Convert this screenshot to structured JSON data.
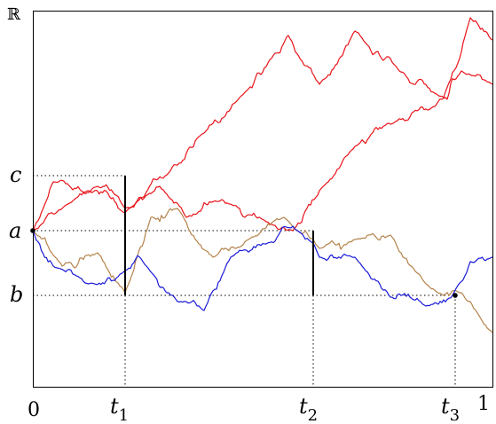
{
  "axis_symbol": "ℝ",
  "y_labels": {
    "c": "c",
    "a": "a",
    "b": "b"
  },
  "x_labels": {
    "origin": "0",
    "end": "1",
    "t1": {
      "base": "t",
      "sub": "1"
    },
    "t2": {
      "base": "t",
      "sub": "2"
    },
    "t3": {
      "base": "t",
      "sub": "3"
    }
  },
  "colors": {
    "axes": "#000000",
    "guides": "#000000",
    "path_red": "#e8141a",
    "path_blue": "#1a1ad8",
    "path_tan": "#b5824a",
    "markers": "#000000"
  }
}
